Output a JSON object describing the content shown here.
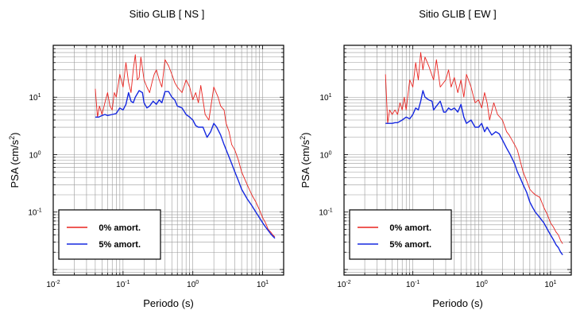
{
  "chart_data": [
    {
      "type": "line",
      "title": "Sitio GLIB [ NS ]",
      "xlabel": "Periodo (s)",
      "ylabel": "PSA (cm/s",
      "ylabel_sup": "2",
      "ylabel_end": ")",
      "x_scale": "log",
      "y_scale": "log",
      "xlim": [
        0.01,
        20
      ],
      "ylim": [
        0.008,
        80
      ],
      "x_ticks": [
        {
          "base": "10",
          "exp": "-2",
          "value": 0.01
        },
        {
          "base": "10",
          "exp": "-1",
          "value": 0.1
        },
        {
          "base": "10",
          "exp": "0",
          "value": 1
        },
        {
          "base": "10",
          "exp": "1",
          "value": 10
        }
      ],
      "y_ticks": [
        {
          "base": "10",
          "exp": "-1",
          "value": 0.1
        },
        {
          "base": "10",
          "exp": "0",
          "value": 1
        },
        {
          "base": "10",
          "exp": "1",
          "value": 10
        }
      ],
      "grid": true,
      "legend_position": "bottom-left",
      "series": [
        {
          "name": "0% amort.",
          "color": "#e8231f",
          "x": [
            0.04,
            0.043,
            0.046,
            0.05,
            0.055,
            0.06,
            0.065,
            0.07,
            0.075,
            0.08,
            0.09,
            0.1,
            0.11,
            0.12,
            0.13,
            0.14,
            0.15,
            0.16,
            0.17,
            0.18,
            0.2,
            0.22,
            0.24,
            0.26,
            0.28,
            0.3,
            0.33,
            0.36,
            0.4,
            0.45,
            0.5,
            0.55,
            0.6,
            0.7,
            0.8,
            0.9,
            1.0,
            1.1,
            1.2,
            1.3,
            1.5,
            1.7,
            2.0,
            2.3,
            2.5,
            2.8,
            3.0,
            3.3,
            3.6,
            4.0,
            4.5,
            5.0,
            6.0,
            7.0,
            8.0,
            9.0,
            10.0,
            11.0,
            12.0,
            13.0,
            14.0,
            15.0
          ],
          "y": [
            14,
            4.5,
            7,
            5,
            8,
            12,
            7,
            6,
            12,
            10,
            25,
            15,
            40,
            18,
            12,
            30,
            55,
            20,
            22,
            50,
            20,
            15,
            12,
            18,
            25,
            30,
            20,
            15,
            45,
            35,
            25,
            18,
            15,
            12,
            20,
            15,
            9,
            12,
            8,
            16,
            5,
            4,
            15,
            10,
            7,
            6,
            3.5,
            2.5,
            1.5,
            1.2,
            0.8,
            0.5,
            0.3,
            0.2,
            0.15,
            0.11,
            0.08,
            0.065,
            0.05,
            0.045,
            0.04,
            0.037
          ]
        },
        {
          "name": "5% amort.",
          "color": "#1528e0",
          "x": [
            0.04,
            0.045,
            0.05,
            0.055,
            0.06,
            0.07,
            0.08,
            0.09,
            0.1,
            0.11,
            0.12,
            0.13,
            0.14,
            0.15,
            0.17,
            0.19,
            0.2,
            0.22,
            0.24,
            0.27,
            0.3,
            0.33,
            0.36,
            0.4,
            0.45,
            0.5,
            0.55,
            0.6,
            0.7,
            0.8,
            0.9,
            1.0,
            1.1,
            1.2,
            1.3,
            1.4,
            1.6,
            1.8,
            2.0,
            2.2,
            2.5,
            2.8,
            3.2,
            3.6,
            4.0,
            4.5,
            5.0,
            6.0,
            7.0,
            8.0,
            9.0,
            10.0,
            11.0,
            12.0,
            13.0,
            14.0,
            15.0
          ],
          "y": [
            4.5,
            4.5,
            4.8,
            5.0,
            4.8,
            5.0,
            5.2,
            6.5,
            6.0,
            7.5,
            12,
            8.5,
            8.0,
            10,
            13,
            12,
            8.0,
            6.5,
            7.0,
            8.5,
            7.5,
            9.0,
            8.0,
            12.5,
            12.5,
            10,
            9.0,
            7.0,
            6.5,
            5.0,
            4.5,
            4.0,
            3.2,
            3.0,
            3.0,
            3.0,
            2.0,
            2.5,
            3.5,
            3.0,
            2.2,
            1.5,
            1.0,
            0.7,
            0.5,
            0.35,
            0.25,
            0.17,
            0.13,
            0.1,
            0.08,
            0.065,
            0.055,
            0.048,
            0.042,
            0.038,
            0.035
          ]
        }
      ]
    },
    {
      "type": "line",
      "title": "Sitio GLIB [ EW ]",
      "xlabel": "Periodo (s)",
      "ylabel": "PSA (cm/s",
      "ylabel_sup": "2",
      "ylabel_end": ")",
      "x_scale": "log",
      "y_scale": "log",
      "xlim": [
        0.01,
        20
      ],
      "ylim": [
        0.008,
        80
      ],
      "x_ticks": [
        {
          "base": "10",
          "exp": "-2",
          "value": 0.01
        },
        {
          "base": "10",
          "exp": "-1",
          "value": 0.1
        },
        {
          "base": "10",
          "exp": "0",
          "value": 1
        },
        {
          "base": "10",
          "exp": "1",
          "value": 10
        }
      ],
      "y_ticks": [
        {
          "base": "10",
          "exp": "-1",
          "value": 0.1
        },
        {
          "base": "10",
          "exp": "0",
          "value": 1
        },
        {
          "base": "10",
          "exp": "1",
          "value": 10
        }
      ],
      "grid": true,
      "legend_position": "bottom-left",
      "series": [
        {
          "name": "0% amort.",
          "color": "#e8231f",
          "x": [
            0.04,
            0.043,
            0.046,
            0.05,
            0.055,
            0.06,
            0.065,
            0.07,
            0.075,
            0.08,
            0.09,
            0.1,
            0.11,
            0.12,
            0.13,
            0.14,
            0.15,
            0.17,
            0.2,
            0.22,
            0.25,
            0.3,
            0.33,
            0.36,
            0.4,
            0.45,
            0.5,
            0.55,
            0.6,
            0.7,
            0.8,
            0.9,
            1.0,
            1.1,
            1.2,
            1.3,
            1.5,
            1.7,
            2.0,
            2.3,
            2.5,
            3.0,
            3.3,
            3.6,
            4.0,
            4.5,
            5.0,
            5.5,
            6.0,
            7.0,
            8.0,
            9.0,
            10.0,
            11.0,
            12.0,
            13.0,
            14.0,
            15.0
          ],
          "y": [
            25,
            3.5,
            6,
            5,
            6,
            5,
            8,
            6,
            10,
            6,
            20,
            15,
            40,
            20,
            60,
            30,
            50,
            35,
            20,
            45,
            15,
            20,
            30,
            15,
            22,
            12,
            20,
            10,
            25,
            15,
            8,
            9,
            6.5,
            12,
            8,
            4,
            8,
            5,
            4,
            2.5,
            2.2,
            1.5,
            1.2,
            0.8,
            0.5,
            0.35,
            0.25,
            0.22,
            0.2,
            0.18,
            0.12,
            0.09,
            0.065,
            0.055,
            0.045,
            0.04,
            0.032,
            0.028
          ]
        },
        {
          "name": "5% amort.",
          "color": "#1528e0",
          "x": [
            0.04,
            0.045,
            0.05,
            0.055,
            0.06,
            0.07,
            0.08,
            0.09,
            0.1,
            0.11,
            0.12,
            0.13,
            0.14,
            0.15,
            0.17,
            0.19,
            0.2,
            0.22,
            0.25,
            0.28,
            0.3,
            0.33,
            0.36,
            0.4,
            0.45,
            0.5,
            0.55,
            0.6,
            0.7,
            0.8,
            0.9,
            1.0,
            1.1,
            1.2,
            1.4,
            1.6,
            1.8,
            2.0,
            2.3,
            2.6,
            3.0,
            3.3,
            3.6,
            4.0,
            4.5,
            5.0,
            5.5,
            6.0,
            7.0,
            8.0,
            9.0,
            10.0,
            11.0,
            12.0,
            13.0,
            14.0,
            15.0
          ],
          "y": [
            3.5,
            3.5,
            3.5,
            3.6,
            3.6,
            4.0,
            4.5,
            4.2,
            5.0,
            6.5,
            6.0,
            8.5,
            13,
            10,
            9.0,
            8.5,
            6.0,
            7.0,
            8.5,
            5.5,
            5.5,
            6.5,
            6.0,
            6.5,
            5.5,
            7.5,
            4.5,
            3.5,
            4.0,
            3.0,
            3.0,
            3.5,
            2.5,
            3.0,
            2.2,
            2.5,
            2.3,
            1.8,
            1.3,
            1.0,
            0.7,
            0.5,
            0.4,
            0.3,
            0.22,
            0.15,
            0.12,
            0.1,
            0.08,
            0.065,
            0.05,
            0.04,
            0.033,
            0.027,
            0.024,
            0.02,
            0.018
          ]
        }
      ]
    }
  ]
}
